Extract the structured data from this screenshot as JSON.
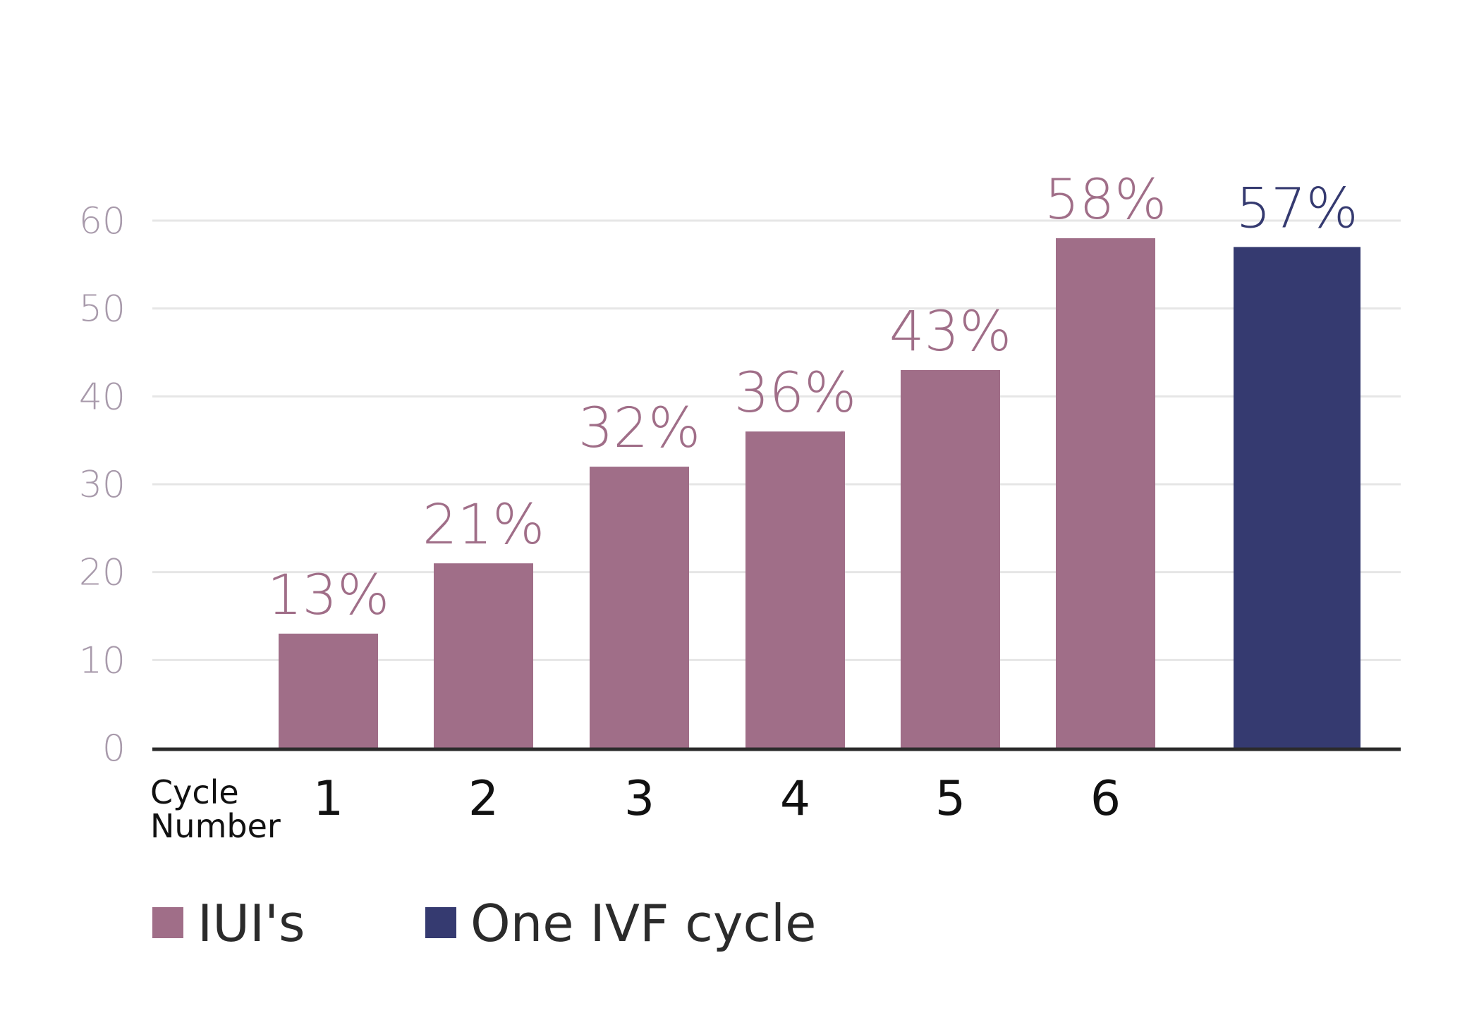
{
  "chart_data": {
    "type": "bar",
    "title": "",
    "xlabel": "Cycle Number",
    "xlabel_lines": [
      "Cycle",
      "Number"
    ],
    "ylabel": "",
    "ylim": [
      0,
      60
    ],
    "yticks": [
      0,
      10,
      20,
      30,
      40,
      50,
      60
    ],
    "grid": true,
    "bars": [
      {
        "category": "1",
        "value": 13,
        "label": "13%",
        "series": "IUI's"
      },
      {
        "category": "2",
        "value": 21,
        "label": "21%",
        "series": "IUI's"
      },
      {
        "category": "3",
        "value": 32,
        "label": "32%",
        "series": "IUI's"
      },
      {
        "category": "4",
        "value": 36,
        "label": "36%",
        "series": "IUI's"
      },
      {
        "category": "5",
        "value": 43,
        "label": "43%",
        "series": "IUI's"
      },
      {
        "category": "6",
        "value": 58,
        "label": "58%",
        "series": "IUI's"
      },
      {
        "category": "",
        "value": 57,
        "label": "57%",
        "series": "One IVF cycle"
      }
    ],
    "series": [
      {
        "name": "IUI's",
        "color": "#a06e88"
      },
      {
        "name": "One IVF cycle",
        "color": "#353a70"
      }
    ],
    "legend_position": "bottom-left",
    "colors": {
      "grid": "#e6e6e6",
      "axis": "#2b2b2b",
      "ytick": "#a89aab",
      "xtick": "#111111",
      "legend_text": "#2b2b2b"
    }
  }
}
